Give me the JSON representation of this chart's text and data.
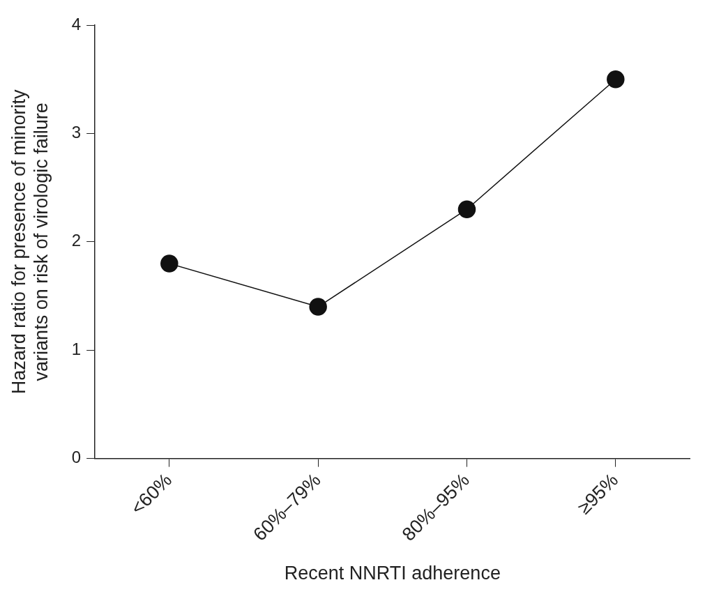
{
  "chart_data": {
    "type": "line",
    "xlabel": "Recent NNRTI adherence",
    "ylabel": "Hazard ratio for presence of minority variants on risk of virologic failure",
    "categories": [
      "<60%",
      "60%–79%",
      "80%–95%",
      "≥95%"
    ],
    "series": [
      {
        "color": "#111111",
        "values": [
          1.8,
          1.4,
          2.3,
          3.5
        ]
      }
    ],
    "ylim": [
      0,
      4
    ],
    "yticks": [
      0,
      1,
      2,
      3,
      4
    ],
    "grid": false,
    "legend": false,
    "marker": "circle",
    "line_style": "solid"
  }
}
